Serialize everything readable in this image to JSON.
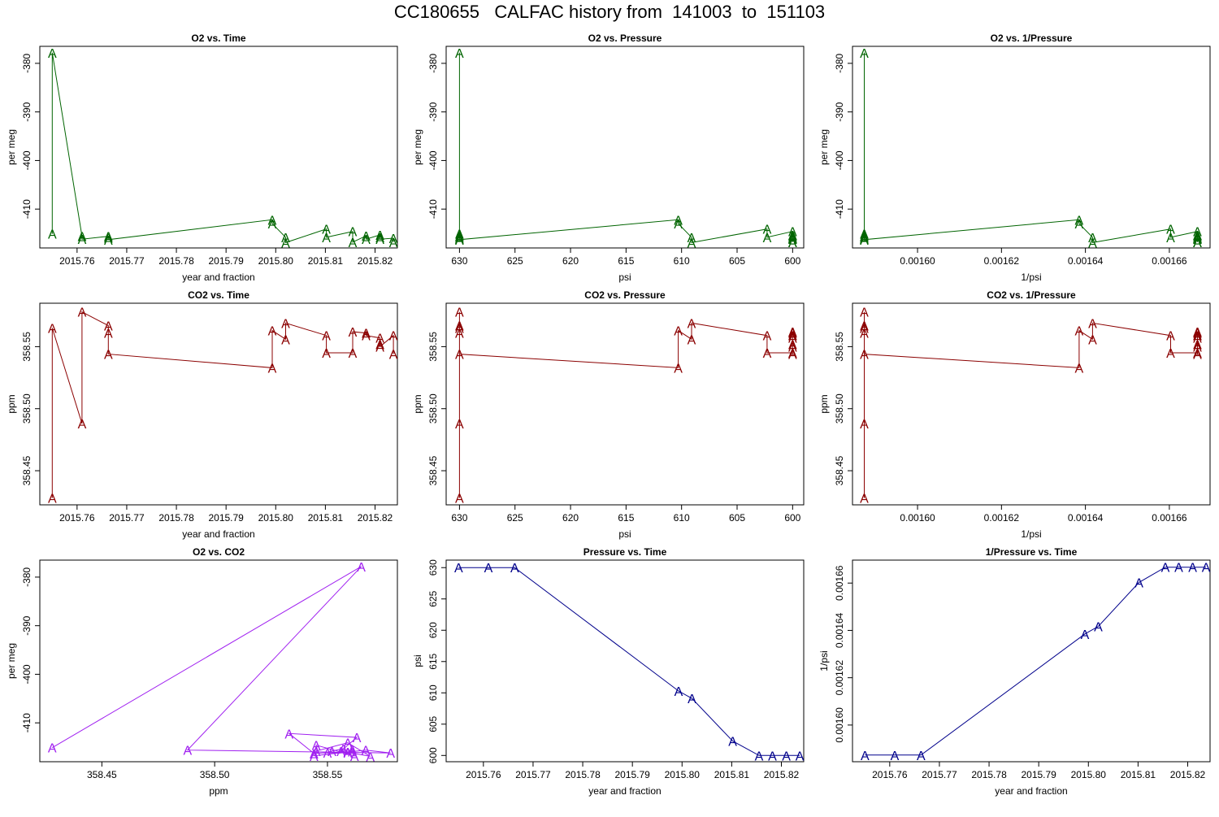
{
  "page_title": "CC180655   CALFAC history from  141003  to  151103",
  "colors": {
    "o2": "#006400",
    "co2": "#8b0000",
    "o2co2": "#a020f0",
    "pressure": "#00008b"
  },
  "chart_data": [
    {
      "type": "line",
      "title": "O2 vs. Time",
      "xlabel": "year and fraction",
      "ylabel": "per meg",
      "color_key": "o2",
      "marker": "A",
      "xlim": [
        2015.7525,
        2015.8245
      ],
      "ylim": [
        -418,
        -376.5
      ],
      "xticks": [
        2015.76,
        2015.77,
        2015.78,
        2015.79,
        2015.8,
        2015.81,
        2015.82
      ],
      "xtick_labels": [
        "2015.76",
        "2015.77",
        "2015.78",
        "2015.79",
        "2015.80",
        "2015.81",
        "2015.82"
      ],
      "yticks": [
        -380,
        -390,
        -400,
        -410
      ],
      "ytick_labels": [
        "-380",
        "-390",
        "-400",
        "-410"
      ],
      "x": [
        2015.755,
        2015.755,
        2015.761,
        2015.761,
        2015.7663,
        2015.7663,
        2015.7663,
        2015.7993,
        2015.7993,
        2015.802,
        2015.802,
        2015.8102,
        2015.8102,
        2015.8155,
        2015.8155,
        2015.8182,
        2015.8182,
        2015.821,
        2015.821,
        2015.821,
        2015.8237,
        2015.8237
      ],
      "y": [
        -415.1,
        -377.8,
        -415.6,
        -416.2,
        -415.6,
        -415.9,
        -416.3,
        -412.2,
        -413.0,
        -415.8,
        -416.9,
        -414.1,
        -415.8,
        -414.6,
        -416.8,
        -415.5,
        -416.2,
        -415.3,
        -415.8,
        -416.2,
        -416.0,
        -416.8
      ]
    },
    {
      "type": "line",
      "title": "O2 vs. Pressure",
      "xlabel": "psi",
      "ylabel": "per meg",
      "color_key": "o2",
      "marker": "A",
      "x_reversed": true,
      "xlim": [
        631.2,
        599.0
      ],
      "ylim": [
        -418,
        -376.5
      ],
      "xticks": [
        630,
        625,
        620,
        615,
        610,
        605,
        600
      ],
      "xtick_labels": [
        "630",
        "625",
        "620",
        "615",
        "610",
        "605",
        "600"
      ],
      "yticks": [
        -380,
        -390,
        -400,
        -410
      ],
      "ytick_labels": [
        "-380",
        "-390",
        "-400",
        "-410"
      ],
      "x": [
        630,
        630,
        630,
        630,
        630,
        630,
        630,
        610.3,
        610.3,
        609.1,
        609.1,
        602.3,
        602.3,
        600,
        600,
        600,
        600,
        600,
        600,
        600,
        600,
        600
      ],
      "y": [
        -415.1,
        -377.8,
        -415.6,
        -416.2,
        -415.6,
        -415.9,
        -416.3,
        -412.2,
        -413.0,
        -415.8,
        -416.9,
        -414.1,
        -415.8,
        -414.6,
        -416.8,
        -415.5,
        -416.2,
        -415.3,
        -415.8,
        -416.2,
        -416.0,
        -416.8
      ]
    },
    {
      "type": "line",
      "title": "O2 vs. 1/Pressure",
      "xlabel": "1/psi",
      "ylabel": "per meg",
      "color_key": "o2",
      "marker": "A",
      "xlim": [
        0.0015845,
        0.0016697
      ],
      "ylim": [
        -418,
        -376.5
      ],
      "xticks": [
        0.0016,
        0.00162,
        0.00164,
        0.00166
      ],
      "xtick_labels": [
        "0.00160",
        "0.00162",
        "0.00164",
        "0.00166"
      ],
      "yticks": [
        -380,
        -390,
        -400,
        -410
      ],
      "ytick_labels": [
        "-380",
        "-390",
        "-400",
        "-410"
      ],
      "x": [
        0.0015873,
        0.0015873,
        0.0015873,
        0.0015873,
        0.0015873,
        0.0015873,
        0.0015873,
        0.0016385,
        0.0016385,
        0.0016417,
        0.0016417,
        0.0016603,
        0.0016603,
        0.0016667,
        0.0016667,
        0.0016667,
        0.0016667,
        0.0016667,
        0.0016667,
        0.0016667,
        0.0016667,
        0.0016667
      ],
      "y": [
        -415.1,
        -377.8,
        -415.6,
        -416.2,
        -415.6,
        -415.9,
        -416.3,
        -412.2,
        -413.0,
        -415.8,
        -416.9,
        -414.1,
        -415.8,
        -414.6,
        -416.8,
        -415.5,
        -416.2,
        -415.3,
        -415.8,
        -416.2,
        -416.0,
        -416.8
      ]
    },
    {
      "type": "line",
      "title": "CO2 vs. Time",
      "xlabel": "year and fraction",
      "ylabel": "ppm",
      "color_key": "co2",
      "marker": "A",
      "xlim": [
        2015.7525,
        2015.8245
      ],
      "ylim": [
        358.4225,
        358.585
      ],
      "xticks": [
        2015.76,
        2015.77,
        2015.78,
        2015.79,
        2015.8,
        2015.81,
        2015.82
      ],
      "xtick_labels": [
        "2015.76",
        "2015.77",
        "2015.78",
        "2015.79",
        "2015.80",
        "2015.81",
        "2015.82"
      ],
      "yticks": [
        358.45,
        358.5,
        358.55
      ],
      "ytick_labels": [
        "358.45",
        "358.50",
        "358.55"
      ],
      "x": [
        2015.755,
        2015.755,
        2015.761,
        2015.761,
        2015.7663,
        2015.7663,
        2015.7663,
        2015.7993,
        2015.7993,
        2015.802,
        2015.802,
        2015.8102,
        2015.8102,
        2015.8155,
        2015.8155,
        2015.8182,
        2015.8182,
        2015.821,
        2015.821,
        2015.821,
        2015.8237,
        2015.8237
      ],
      "y": [
        358.428,
        358.565,
        358.488,
        358.578,
        358.567,
        358.561,
        358.544,
        358.533,
        358.563,
        358.556,
        358.569,
        358.559,
        358.545,
        358.545,
        358.562,
        358.561,
        358.559,
        358.557,
        358.552,
        358.55,
        358.559,
        358.544
      ]
    },
    {
      "type": "line",
      "title": "CO2 vs. Pressure",
      "xlabel": "psi",
      "ylabel": "ppm",
      "color_key": "co2",
      "marker": "A",
      "x_reversed": true,
      "xlim": [
        631.2,
        599.0
      ],
      "ylim": [
        358.4225,
        358.585
      ],
      "xticks": [
        630,
        625,
        620,
        615,
        610,
        605,
        600
      ],
      "xtick_labels": [
        "630",
        "625",
        "620",
        "615",
        "610",
        "605",
        "600"
      ],
      "yticks": [
        358.45,
        358.5,
        358.55
      ],
      "ytick_labels": [
        "358.45",
        "358.50",
        "358.55"
      ],
      "x": [
        630,
        630,
        630,
        630,
        630,
        630,
        630,
        610.3,
        610.3,
        609.1,
        609.1,
        602.3,
        602.3,
        600,
        600,
        600,
        600,
        600,
        600,
        600,
        600,
        600
      ],
      "y": [
        358.428,
        358.565,
        358.488,
        358.578,
        358.567,
        358.561,
        358.544,
        358.533,
        358.563,
        358.556,
        358.569,
        358.559,
        358.545,
        358.545,
        358.562,
        358.561,
        358.559,
        358.557,
        358.552,
        358.55,
        358.559,
        358.544
      ]
    },
    {
      "type": "line",
      "title": "CO2 vs. 1/Pressure",
      "xlabel": "1/psi",
      "ylabel": "ppm",
      "color_key": "co2",
      "marker": "A",
      "xlim": [
        0.0015845,
        0.0016697
      ],
      "ylim": [
        358.4225,
        358.585
      ],
      "xticks": [
        0.0016,
        0.00162,
        0.00164,
        0.00166
      ],
      "xtick_labels": [
        "0.00160",
        "0.00162",
        "0.00164",
        "0.00166"
      ],
      "yticks": [
        358.45,
        358.5,
        358.55
      ],
      "ytick_labels": [
        "358.45",
        "358.50",
        "358.55"
      ],
      "x": [
        0.0015873,
        0.0015873,
        0.0015873,
        0.0015873,
        0.0015873,
        0.0015873,
        0.0015873,
        0.0016385,
        0.0016385,
        0.0016417,
        0.0016417,
        0.0016603,
        0.0016603,
        0.0016667,
        0.0016667,
        0.0016667,
        0.0016667,
        0.0016667,
        0.0016667,
        0.0016667,
        0.0016667,
        0.0016667
      ],
      "y": [
        358.428,
        358.565,
        358.488,
        358.578,
        358.567,
        358.561,
        358.544,
        358.533,
        358.563,
        358.556,
        358.569,
        358.559,
        358.545,
        358.545,
        358.562,
        358.561,
        358.559,
        358.557,
        358.552,
        358.55,
        358.559,
        358.544
      ]
    },
    {
      "type": "line",
      "title": "O2 vs. CO2",
      "xlabel": "ppm",
      "ylabel": "per meg",
      "color_key": "o2co2",
      "marker": "A",
      "xlim": [
        358.4225,
        358.581
      ],
      "ylim": [
        -418,
        -376.5
      ],
      "xticks": [
        358.45,
        358.5,
        358.55
      ],
      "xtick_labels": [
        "358.45",
        "358.50",
        "358.55"
      ],
      "yticks": [
        -380,
        -390,
        -400,
        -410
      ],
      "ytick_labels": [
        "-380",
        "-390",
        "-400",
        "-410"
      ],
      "x": [
        358.428,
        358.565,
        358.488,
        358.578,
        358.567,
        358.561,
        358.544,
        358.533,
        358.563,
        358.556,
        358.569,
        358.559,
        358.545,
        358.545,
        358.562,
        358.561,
        358.559,
        358.557,
        358.552,
        358.55,
        358.559,
        358.544
      ],
      "y": [
        -415.1,
        -377.8,
        -415.6,
        -416.2,
        -415.6,
        -415.9,
        -416.3,
        -412.2,
        -413.0,
        -415.8,
        -416.9,
        -414.1,
        -415.8,
        -414.6,
        -416.8,
        -415.5,
        -416.2,
        -415.3,
        -415.8,
        -416.2,
        -416.0,
        -416.8
      ]
    },
    {
      "type": "line",
      "title": "Pressure vs. Time",
      "xlabel": "year and fraction",
      "ylabel": "psi",
      "color_key": "pressure",
      "marker": "A",
      "xlim": [
        2015.7525,
        2015.8245
      ],
      "ylim": [
        599.0,
        631.2
      ],
      "xticks": [
        2015.76,
        2015.77,
        2015.78,
        2015.79,
        2015.8,
        2015.81,
        2015.82
      ],
      "xtick_labels": [
        "2015.76",
        "2015.77",
        "2015.78",
        "2015.79",
        "2015.80",
        "2015.81",
        "2015.82"
      ],
      "yticks": [
        600,
        605,
        610,
        615,
        620,
        625,
        630
      ],
      "ytick_labels": [
        "600",
        "605",
        "610",
        "615",
        "620",
        "625",
        "630"
      ],
      "x": [
        2015.755,
        2015.761,
        2015.7663,
        2015.7993,
        2015.802,
        2015.8102,
        2015.8155,
        2015.8182,
        2015.821,
        2015.8237
      ],
      "y": [
        630,
        630,
        630,
        610.3,
        609.1,
        602.3,
        600,
        600,
        600,
        600
      ]
    },
    {
      "type": "line",
      "title": "1/Pressure vs. Time",
      "xlabel": "year and fraction",
      "ylabel": "1/psi",
      "color_key": "pressure",
      "marker": "A",
      "xlim": [
        2015.7525,
        2015.8245
      ],
      "ylim": [
        0.0015845,
        0.0016697
      ],
      "xticks": [
        2015.76,
        2015.77,
        2015.78,
        2015.79,
        2015.8,
        2015.81,
        2015.82
      ],
      "xtick_labels": [
        "2015.76",
        "2015.77",
        "2015.78",
        "2015.79",
        "2015.80",
        "2015.81",
        "2015.82"
      ],
      "yticks": [
        0.0016,
        0.00162,
        0.00164,
        0.00166
      ],
      "ytick_labels": [
        "0.00160",
        "0.00162",
        "0.00164",
        "0.00166"
      ],
      "x": [
        2015.755,
        2015.761,
        2015.7663,
        2015.7993,
        2015.802,
        2015.8102,
        2015.8155,
        2015.8182,
        2015.821,
        2015.8237
      ],
      "y": [
        0.0015873,
        0.0015873,
        0.0015873,
        0.0016385,
        0.0016417,
        0.0016603,
        0.0016667,
        0.0016667,
        0.0016667,
        0.0016667
      ]
    }
  ]
}
